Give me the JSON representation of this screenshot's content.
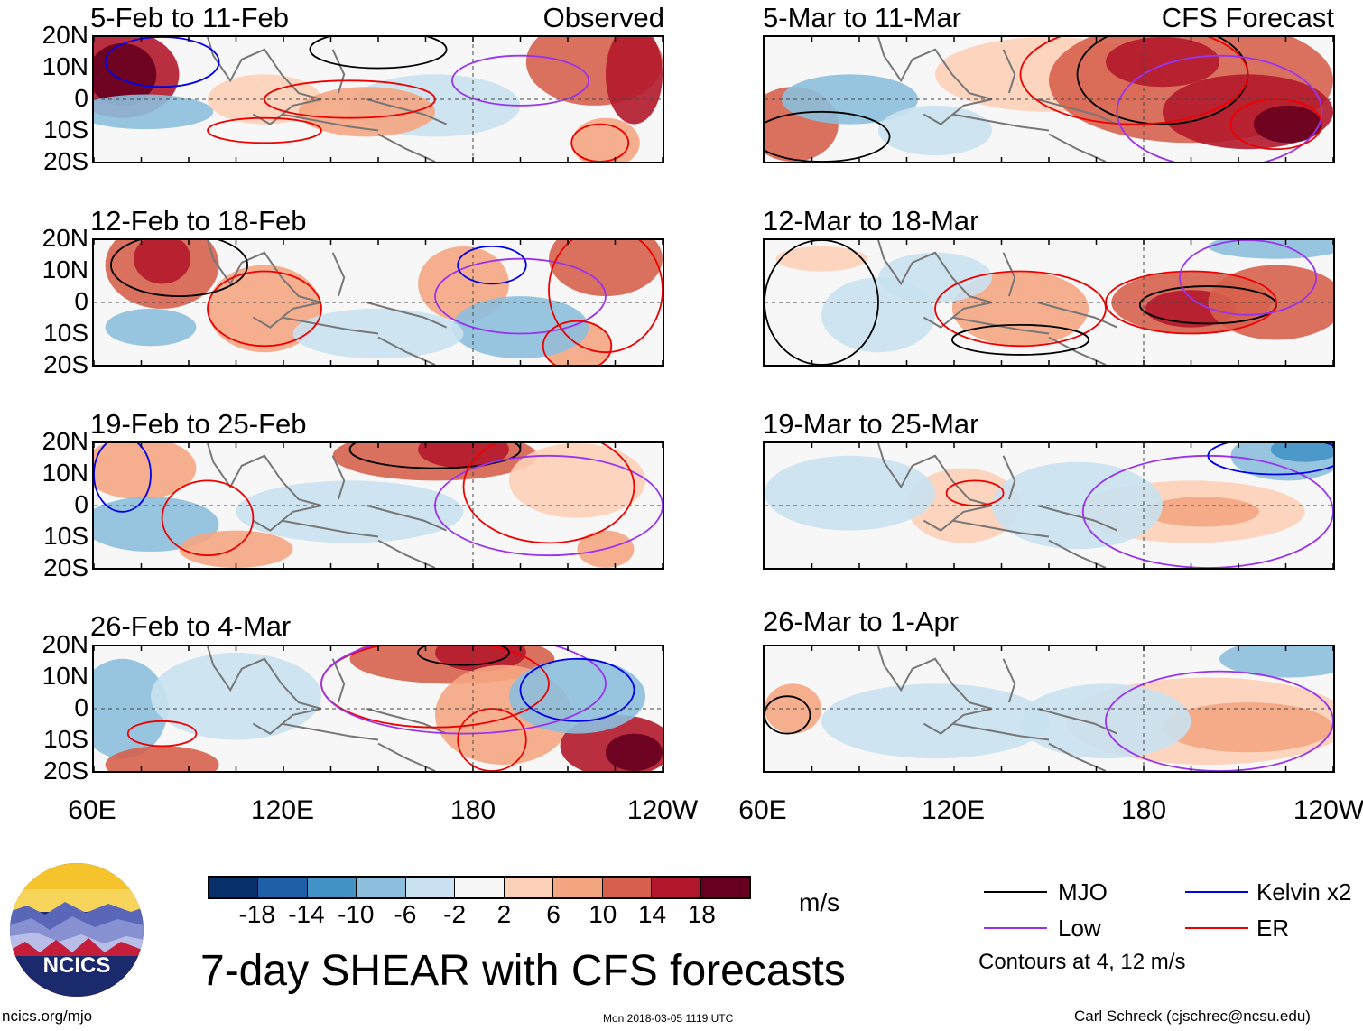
{
  "chart_data": {
    "type": "heatmap",
    "title": "7-day SHEAR with CFS forecasts",
    "units": "m/s",
    "y_ticks": [
      "20N",
      "10N",
      "0",
      "10S",
      "20S"
    ],
    "x_ticks": [
      "60E",
      "120E",
      "180",
      "120W"
    ],
    "left_column_tag": "Observed",
    "right_column_tag": "CFS Forecast",
    "panels": [
      {
        "period": "5-Feb to 11-Feb",
        "source": "Observed",
        "pattern": 0
      },
      {
        "period": "12-Feb to 18-Feb",
        "source": "Observed",
        "pattern": 1
      },
      {
        "period": "19-Feb to 25-Feb",
        "source": "Observed",
        "pattern": 2
      },
      {
        "period": "26-Feb to 4-Mar",
        "source": "Observed",
        "pattern": 3
      },
      {
        "period": "5-Mar to 11-Mar",
        "source": "CFS Forecast",
        "pattern": 4
      },
      {
        "period": "12-Mar to 18-Mar",
        "source": "CFS Forecast",
        "pattern": 5
      },
      {
        "period": "19-Mar to 25-Mar",
        "source": "CFS Forecast",
        "pattern": 6
      },
      {
        "period": "26-Mar to 1-Apr",
        "source": "CFS Forecast",
        "pattern": 7
      }
    ],
    "colorbar": {
      "labels": [
        "-18",
        "-14",
        "-10",
        "-6",
        "-2",
        "2",
        "6",
        "10",
        "14",
        "18"
      ],
      "colors": [
        "#08306b",
        "#1f5fa8",
        "#4292c6",
        "#8cbfdd",
        "#c9e1f0",
        "#f7f7f7",
        "#fdd0b8",
        "#f4a582",
        "#d6604d",
        "#b2182b",
        "#67001f"
      ]
    },
    "legend": [
      {
        "label": "MJO",
        "color": "#000000"
      },
      {
        "label": "Kelvin x2",
        "color": "#0000e6"
      },
      {
        "label": "Low",
        "color": "#9933ee"
      },
      {
        "label": "ER",
        "color": "#ee0000"
      }
    ],
    "contour_note": "Contours at 4, 12 m/s"
  },
  "footer": {
    "website": "ncics.org/mjo",
    "timestamp": "Mon 2018-03-05 1119 UTC",
    "author": "Carl Schreck (cjschrec@ncsu.edu)",
    "logo_text": "NCICS"
  }
}
